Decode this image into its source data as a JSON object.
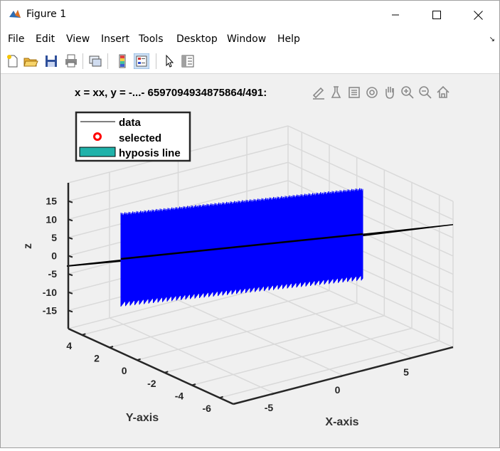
{
  "window": {
    "title": "Figure 1"
  },
  "menu": [
    "File",
    "Edit",
    "View",
    "Insert",
    "Tools",
    "Desktop",
    "Window",
    "Help"
  ],
  "toolbar_icons": [
    "new-figure-icon",
    "open-file-icon",
    "save-icon",
    "print-icon",
    "link-plot-icon",
    "colorbar-icon",
    "legend-icon",
    "edit-pointer-icon",
    "property-inspector-icon"
  ],
  "axes_toolbar_icons": [
    "brush-icon",
    "data-tips-icon",
    "insert-legend-icon",
    "rotate-3d-icon",
    "pan-icon",
    "zoom-in-icon",
    "zoom-out-icon",
    "home-icon"
  ],
  "chart_data": {
    "type": "line",
    "projection": "3d",
    "title": "x = xx, y = -...- 6597094934875864/491:",
    "xlabel": "X-axis",
    "ylabel": "Y-axis",
    "zlabel": "z",
    "x_ticks": [
      "-5",
      "0",
      "5"
    ],
    "y_ticks": [
      "-6",
      "-4",
      "-2",
      "0",
      "2",
      "4"
    ],
    "z_ticks": [
      "15",
      "10",
      "5",
      "0",
      "-5",
      "-10",
      "-15"
    ],
    "xlim": [
      -8,
      8
    ],
    "ylim": [
      -7,
      5
    ],
    "zlim": [
      -20,
      20
    ],
    "grid": true,
    "legend_position": "top-left",
    "series": [
      {
        "name": "data",
        "style": "line",
        "color": "#000000",
        "z_amplitude": 15
      },
      {
        "name": "selected",
        "style": "marker",
        "color": "#ff0000"
      },
      {
        "name": "hyposis line",
        "style": "patch",
        "color": "#20b2aa"
      }
    ],
    "data_band_color": "#0000ff"
  }
}
